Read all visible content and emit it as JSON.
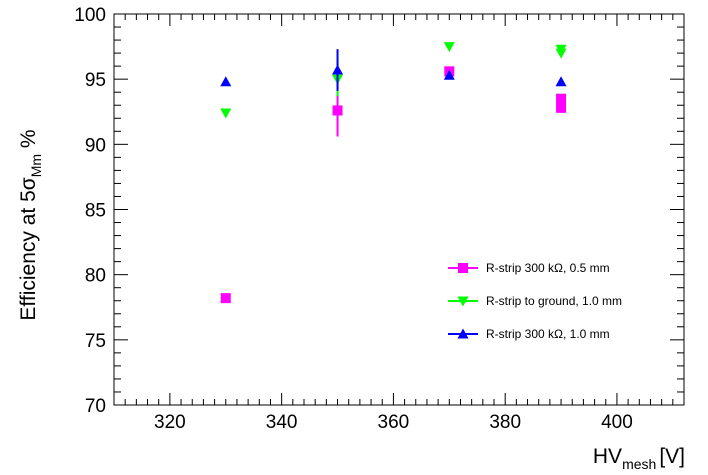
{
  "chart_data": {
    "type": "scatter",
    "title": "",
    "xlabel": {
      "main": "HV",
      "sub": "mesh",
      "unit": "[V]"
    },
    "ylabel": {
      "pre": "Efficiency at 5",
      "sigma": "σ",
      "sub": "Mm",
      "post": " %"
    },
    "xlim": [
      310,
      412
    ],
    "ylim": [
      70,
      100
    ],
    "xticks": [
      320,
      340,
      360,
      380,
      400
    ],
    "yticks": [
      70,
      75,
      80,
      85,
      90,
      95,
      100
    ],
    "grid": false,
    "legend_position": "right",
    "series": [
      {
        "name": "R-strip 300 kΩ, 0.5 mm",
        "color": "#ff00ff",
        "marker": "square",
        "points": [
          {
            "x": 330,
            "y": 78.2,
            "err": 0
          },
          {
            "x": 350,
            "y": 92.6,
            "err": 2.0
          },
          {
            "x": 370,
            "y": 95.6,
            "err": 0
          },
          {
            "x": 390,
            "y": 93.5,
            "err": 0
          },
          {
            "x": 390,
            "y": 92.8,
            "err": 0
          }
        ]
      },
      {
        "name": "R-strip to ground, 1.0 mm",
        "color": "#00ff00",
        "marker": "triangle-down",
        "points": [
          {
            "x": 330,
            "y": 92.4,
            "err": 0
          },
          {
            "x": 350,
            "y": 95.0,
            "err": 1.3
          },
          {
            "x": 370,
            "y": 97.5,
            "err": 0
          },
          {
            "x": 390,
            "y": 97.3,
            "err": 0
          },
          {
            "x": 390,
            "y": 97.0,
            "err": 0
          }
        ]
      },
      {
        "name": "R-strip 300 kΩ, 1.0 mm",
        "color": "#0000ff",
        "marker": "triangle-up",
        "points": [
          {
            "x": 330,
            "y": 94.8,
            "err": 0
          },
          {
            "x": 350,
            "y": 95.7,
            "err": 1.6
          },
          {
            "x": 370,
            "y": 95.3,
            "err": 0
          },
          {
            "x": 390,
            "y": 94.8,
            "err": 0
          }
        ]
      }
    ]
  }
}
